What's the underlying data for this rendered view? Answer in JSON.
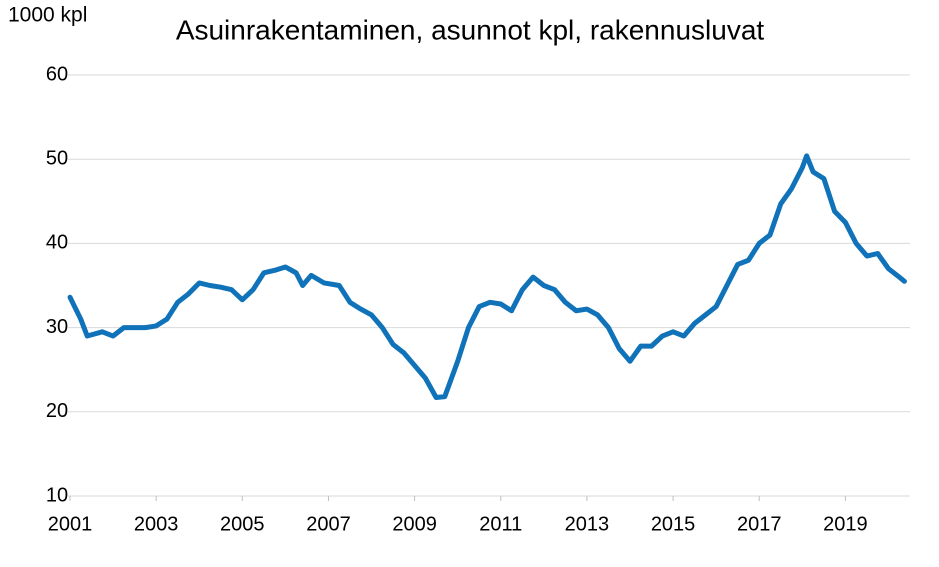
{
  "chart_data": {
    "type": "line",
    "title": "Asuinrakentaminen, asunnot kpl, rakennusluvat",
    "y_label": "1000 kpl",
    "x": [
      2001.0,
      2001.25,
      2001.4,
      2001.75,
      2002.0,
      2002.25,
      2002.5,
      2002.75,
      2003.0,
      2003.25,
      2003.5,
      2003.75,
      2004.0,
      2004.25,
      2004.5,
      2004.75,
      2005.0,
      2005.25,
      2005.5,
      2005.75,
      2006.0,
      2006.25,
      2006.4,
      2006.6,
      2006.9,
      2007.25,
      2007.5,
      2007.75,
      2008.0,
      2008.25,
      2008.5,
      2008.75,
      2009.0,
      2009.25,
      2009.5,
      2009.7,
      2010.0,
      2010.25,
      2010.5,
      2010.75,
      2011.0,
      2011.25,
      2011.5,
      2011.75,
      2012.0,
      2012.25,
      2012.5,
      2012.75,
      2013.0,
      2013.25,
      2013.5,
      2013.75,
      2014.0,
      2014.25,
      2014.5,
      2014.75,
      2015.0,
      2015.25,
      2015.5,
      2015.75,
      2016.0,
      2016.25,
      2016.5,
      2016.75,
      2017.0,
      2017.25,
      2017.5,
      2017.75,
      2018.0,
      2018.1,
      2018.25,
      2018.5,
      2018.75,
      2019.0,
      2019.25,
      2019.5,
      2019.75,
      2020.0,
      2020.25,
      2020.37
    ],
    "series": [
      {
        "name": "Asunnot",
        "color": "#1072b8",
        "values": [
          33.6,
          31,
          29,
          29.5,
          29,
          30,
          30,
          30,
          30.2,
          31,
          33,
          34,
          35.3,
          35,
          34.8,
          34.5,
          33.3,
          34.5,
          36.5,
          36.8,
          37.2,
          36.5,
          35,
          36.2,
          35.3,
          35,
          33,
          32.2,
          31.5,
          30,
          28,
          27,
          25.5,
          24,
          21.7,
          21.8,
          26,
          30,
          32.5,
          33,
          32.8,
          32,
          34.5,
          36,
          35,
          34.5,
          33,
          32,
          32.2,
          31.5,
          30,
          27.5,
          26,
          27.8,
          27.8,
          29,
          29.5,
          29,
          30.5,
          31.5,
          32.5,
          35,
          37.5,
          38,
          40,
          41,
          44.7,
          46.5,
          49,
          50.4,
          48.5,
          47.7,
          43.8,
          42.5,
          40,
          38.5,
          38.8,
          37,
          36,
          35.5
        ]
      }
    ],
    "xlim": [
      2001,
      2020.5
    ],
    "xticks": [
      2001,
      2003,
      2005,
      2007,
      2009,
      2011,
      2013,
      2015,
      2017,
      2019
    ],
    "ylim": [
      10,
      60
    ],
    "yticks": [
      10,
      20,
      30,
      40,
      50,
      60
    ],
    "grid": true
  }
}
